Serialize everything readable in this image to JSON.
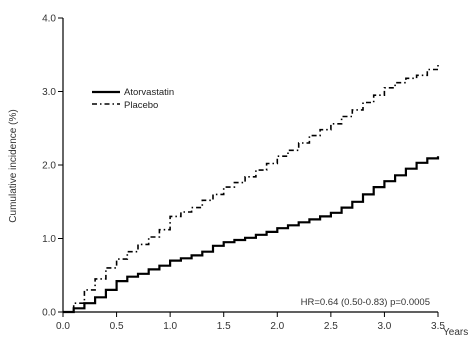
{
  "chart_data": {
    "type": "line",
    "xlabel": "Years",
    "ylabel": "Cumulative incidence (%)",
    "xlim": [
      0,
      3.5
    ],
    "ylim": [
      0,
      4.0
    ],
    "x_ticks": [
      "0.0",
      "0.5",
      "1.0",
      "1.5",
      "2.0",
      "2.5",
      "3.0",
      "3.5"
    ],
    "y_ticks": [
      "0.0",
      "1.0",
      "2.0",
      "3.0",
      "4.0"
    ],
    "grid": false,
    "legend_position": "upper-left",
    "annotation": "HR=0.64 (0.50-0.83)   p=0.0005",
    "series": [
      {
        "name": "Atorvastatin",
        "style": "solid",
        "color": "#000000",
        "x": [
          0,
          0.1,
          0.2,
          0.3,
          0.4,
          0.5,
          0.6,
          0.7,
          0.8,
          0.9,
          1.0,
          1.1,
          1.2,
          1.3,
          1.4,
          1.5,
          1.6,
          1.7,
          1.8,
          1.9,
          2.0,
          2.1,
          2.2,
          2.3,
          2.4,
          2.5,
          2.6,
          2.7,
          2.8,
          2.9,
          3.0,
          3.1,
          3.2,
          3.3,
          3.4,
          3.5
        ],
        "values": [
          0,
          0.05,
          0.12,
          0.2,
          0.3,
          0.42,
          0.48,
          0.52,
          0.58,
          0.63,
          0.7,
          0.73,
          0.77,
          0.82,
          0.9,
          0.95,
          0.98,
          1.01,
          1.05,
          1.09,
          1.14,
          1.18,
          1.22,
          1.26,
          1.3,
          1.35,
          1.42,
          1.5,
          1.6,
          1.7,
          1.78,
          1.86,
          1.95,
          2.03,
          2.09,
          2.12
        ]
      },
      {
        "name": "Placebo",
        "style": "dashed",
        "color": "#000000",
        "x": [
          0,
          0.1,
          0.2,
          0.3,
          0.4,
          0.5,
          0.6,
          0.7,
          0.8,
          0.9,
          1.0,
          1.1,
          1.2,
          1.3,
          1.4,
          1.5,
          1.6,
          1.7,
          1.8,
          1.9,
          2.0,
          2.1,
          2.2,
          2.3,
          2.4,
          2.5,
          2.6,
          2.7,
          2.8,
          2.9,
          3.0,
          3.1,
          3.2,
          3.3,
          3.4,
          3.5
        ],
        "values": [
          0,
          0.12,
          0.3,
          0.45,
          0.6,
          0.72,
          0.82,
          0.92,
          1.02,
          1.12,
          1.3,
          1.36,
          1.42,
          1.52,
          1.6,
          1.7,
          1.76,
          1.84,
          1.93,
          2.02,
          2.12,
          2.2,
          2.3,
          2.4,
          2.48,
          2.56,
          2.66,
          2.75,
          2.85,
          2.95,
          3.05,
          3.12,
          3.18,
          3.22,
          3.3,
          3.38
        ]
      }
    ]
  }
}
